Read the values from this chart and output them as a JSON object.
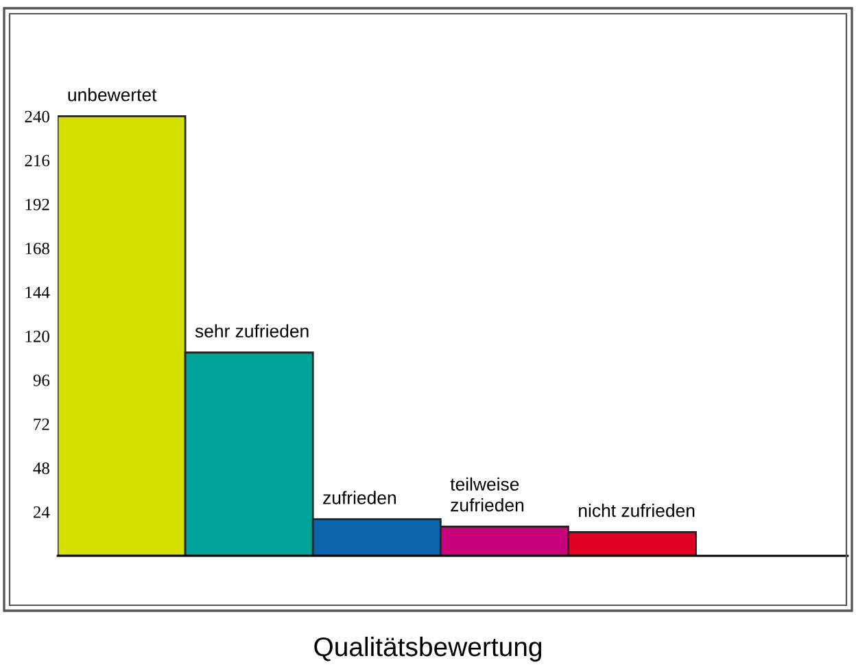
{
  "chart_data": {
    "type": "bar",
    "xlabel": "Qualitätsbewertung",
    "categories": [
      "unbewertet",
      "sehr zufrieden",
      "zufrieden",
      "teilweise\nzufrieden",
      "nicht zufrieden"
    ],
    "values": [
      240,
      111,
      20,
      16,
      13
    ],
    "colors": [
      "#d4e000",
      "#00a397",
      "#0d64ad",
      "#c8007a",
      "#e00025"
    ],
    "ylim": [
      0,
      296
    ],
    "yticks": [
      24,
      48,
      72,
      96,
      120,
      144,
      168,
      192,
      216,
      240
    ],
    "grid": false,
    "legend": false
  }
}
